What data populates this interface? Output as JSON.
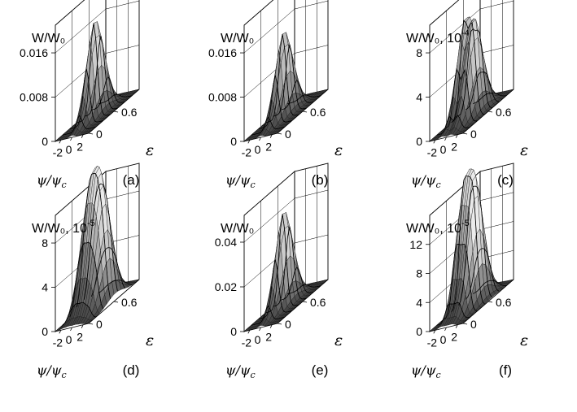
{
  "chart_data": [
    {
      "type": "surface3d",
      "panel_label": "(a)",
      "zlabel": "W/W₀",
      "zlabel_exp": "",
      "xlabel": "ψ/ψ",
      "xlabel_sub": "c",
      "ylabel": "ε",
      "z_ticks": [
        "0",
        "0.008",
        "0.016"
      ],
      "z_tick_values": [
        0,
        0.008,
        0.016
      ],
      "z_max": 0.021,
      "x_ticks": [
        "-2",
        "0",
        "2"
      ],
      "y_ticks": [
        "0",
        "0.6"
      ],
      "x_range": [
        -3,
        3
      ],
      "y_range": [
        0,
        1.2
      ],
      "peaks": [
        {
          "x": 0.0,
          "z": 0.0175
        }
      ],
      "grid": true
    },
    {
      "type": "surface3d",
      "panel_label": "(b)",
      "zlabel": "W/W₀",
      "zlabel_exp": "",
      "xlabel": "ψ/ψ",
      "xlabel_sub": "c",
      "ylabel": "ε",
      "z_ticks": [
        "0",
        "0.008",
        "0.016"
      ],
      "z_tick_values": [
        0,
        0.008,
        0.016
      ],
      "z_max": 0.021,
      "x_ticks": [
        "-2",
        "0",
        "2"
      ],
      "y_ticks": [
        "0",
        "0.6"
      ],
      "x_range": [
        -3,
        3
      ],
      "y_range": [
        0,
        1.2
      ],
      "peaks": [
        {
          "x": 0.0,
          "z": 0.0155
        }
      ],
      "grid": true
    },
    {
      "type": "surface3d",
      "panel_label": "(c)",
      "zlabel": "W/W₀, 10",
      "zlabel_exp": "-4",
      "xlabel": "ψ/ψ",
      "xlabel_sub": "c",
      "ylabel": "ε",
      "z_ticks": [
        "0",
        "4",
        "8"
      ],
      "z_tick_values": [
        0,
        4,
        8
      ],
      "z_max": 10.5,
      "x_ticks": [
        "-2",
        "0",
        "2"
      ],
      "y_ticks": [
        "0",
        "0.6"
      ],
      "x_range": [
        -3,
        3
      ],
      "y_range": [
        0,
        1.2
      ],
      "peaks": [
        {
          "x": -0.75,
          "z": 8.6
        },
        {
          "x": 0.75,
          "z": 8.2
        }
      ],
      "grid": true
    },
    {
      "type": "surface3d",
      "panel_label": "(d)",
      "zlabel": "W/W₀, 10",
      "zlabel_exp": "-5",
      "xlabel": "ψ/ψ",
      "xlabel_sub": "c",
      "ylabel": "ε",
      "z_ticks": [
        "0",
        "4",
        "8"
      ],
      "z_tick_values": [
        0,
        4,
        8
      ],
      "z_max": 10.5,
      "x_ticks": [
        "-2",
        "0",
        "2"
      ],
      "y_ticks": [
        "0",
        "0.6"
      ],
      "x_range": [
        -3,
        3
      ],
      "y_range": [
        0,
        1.2
      ],
      "peaks": [
        {
          "x": -1.6,
          "z": 6.0
        },
        {
          "x": -0.55,
          "z": 8.8
        },
        {
          "x": 0.55,
          "z": 8.7
        },
        {
          "x": 1.6,
          "z": 6.2
        }
      ],
      "grid": true
    },
    {
      "type": "surface3d",
      "panel_label": "(e)",
      "zlabel": "W/W₀",
      "zlabel_exp": "",
      "xlabel": "ψ/ψ",
      "xlabel_sub": "c",
      "ylabel": "ε",
      "z_ticks": [
        "0",
        "0.02",
        "0.04"
      ],
      "z_tick_values": [
        0,
        0.02,
        0.04
      ],
      "z_max": 0.052,
      "x_ticks": [
        "-2",
        "0",
        "2"
      ],
      "y_ticks": [
        "0",
        "0.6"
      ],
      "x_range": [
        -3,
        3
      ],
      "y_range": [
        0,
        1.2
      ],
      "peaks": [
        {
          "x": 0.0,
          "z": 0.043
        }
      ],
      "grid": true
    },
    {
      "type": "surface3d",
      "panel_label": "(f)",
      "zlabel": "W/W₀, 10",
      "zlabel_exp": "-5",
      "xlabel": "ψ/ψ",
      "xlabel_sub": "c",
      "ylabel": "ε",
      "z_ticks": [
        "0",
        "4",
        "8",
        "12"
      ],
      "z_tick_values": [
        0,
        4,
        8,
        12
      ],
      "z_max": 16,
      "x_ticks": [
        "-2",
        "0",
        "2"
      ],
      "y_ticks": [
        "0",
        "0.6"
      ],
      "x_range": [
        -3,
        3
      ],
      "y_range": [
        0,
        1.2
      ],
      "peaks": [
        {
          "x": -1.0,
          "z": 13.5
        },
        {
          "x": 0.0,
          "z": 11.0
        },
        {
          "x": 1.0,
          "z": 13.0
        }
      ],
      "grid": true
    }
  ]
}
